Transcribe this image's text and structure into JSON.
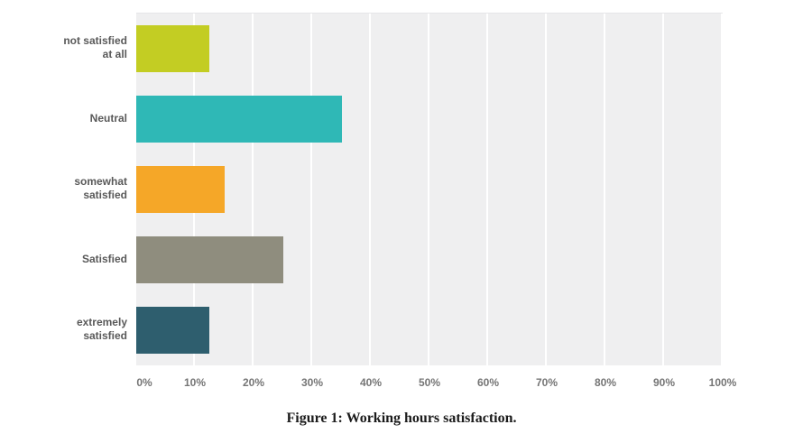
{
  "figure": {
    "caption": "Figure 1: Working hours satisfaction."
  },
  "chart_data": {
    "type": "bar",
    "orientation": "horizontal",
    "title": "",
    "xlabel": "",
    "ylabel": "",
    "categories": [
      "not satisfied at all",
      "Neutral",
      "somewhat satisfied",
      "Satisfied",
      "extremely satisfied"
    ],
    "category_label_lines": [
      [
        "not satisfied",
        "at all"
      ],
      [
        "Neutral"
      ],
      [
        "somewhat",
        "satisfied"
      ],
      [
        "Satisfied"
      ],
      [
        "extremely",
        "satisfied"
      ]
    ],
    "values": [
      12.5,
      35,
      15,
      25,
      12.5
    ],
    "unit": "%",
    "bar_colors": [
      "#c3cd23",
      "#2fb8b6",
      "#f5a728",
      "#8f8d7e",
      "#2e5e6e"
    ],
    "x_ticks": [
      "0%",
      "10%",
      "20%",
      "30%",
      "40%",
      "50%",
      "60%",
      "70%",
      "80%",
      "90%",
      "100%"
    ],
    "xlim": [
      0,
      100
    ],
    "grid": true,
    "gridline_color": "#ffffff",
    "plot_background": "#efeff0",
    "legend_position": "none"
  }
}
